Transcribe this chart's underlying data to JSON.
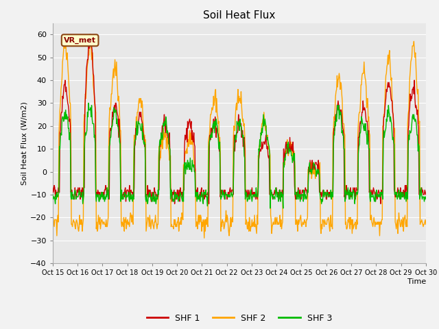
{
  "title": "Soil Heat Flux",
  "ylabel": "Soil Heat Flux (W/m2)",
  "xlabel": "Time",
  "ylim": [
    -40,
    65
  ],
  "yticks": [
    -40,
    -30,
    -20,
    -10,
    0,
    10,
    20,
    30,
    40,
    50,
    60
  ],
  "colors": {
    "SHF1": "#cc0000",
    "SHF2": "#ffa500",
    "SHF3": "#00bb00"
  },
  "legend_label1": "SHF 1",
  "legend_label2": "SHF 2",
  "legend_label3": "SHF 3",
  "annotation_text": "VR_met",
  "bg_color": "#e8e8e8",
  "fig_bg": "#f2f2f2",
  "grid_color": "#ffffff",
  "linewidth": 1.0,
  "xtick_labels": [
    "Oct 15",
    "Oct 16",
    "Oct 17",
    "Oct 18",
    "Oct 19",
    "Oct 20",
    "Oct 21",
    "Oct 22",
    "Oct 23",
    "Oct 24",
    "Oct 25",
    "Oct 26",
    "Oct 27",
    "Oct 28",
    "Oct 29",
    "Oct 30"
  ]
}
